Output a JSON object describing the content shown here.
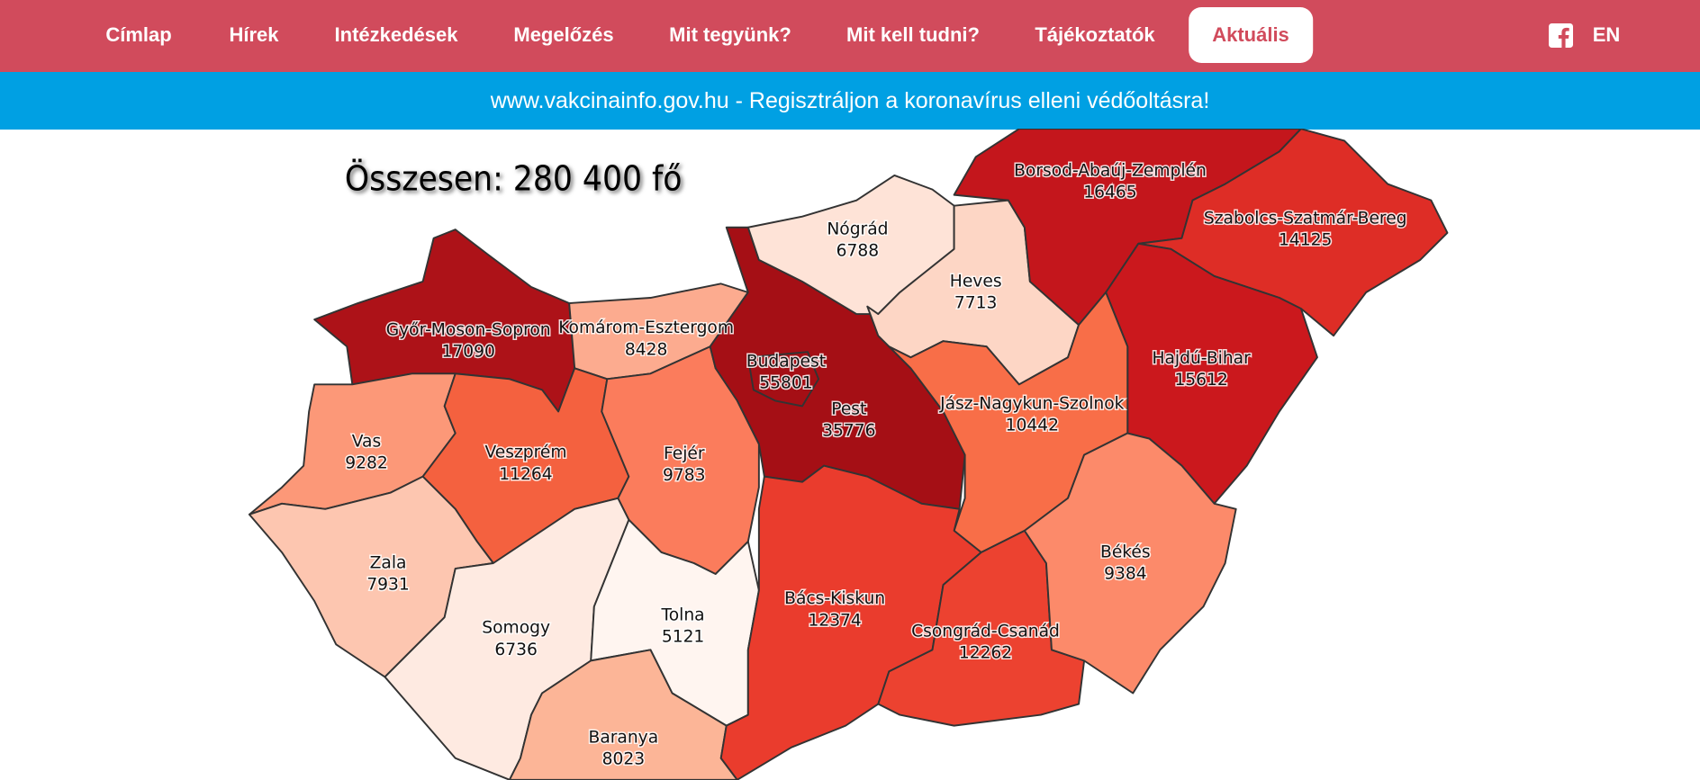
{
  "nav": {
    "items": [
      "Címlap",
      "Hírek",
      "Intézkedések",
      "Megelőzés",
      "Mit tegyünk?",
      "Mit kell tudni?",
      "Tájékoztatók",
      "Aktuális"
    ],
    "language": "EN"
  },
  "banner": {
    "text": "www.vakcinainfo.gov.hu - Regisztráljon a koronavírus elleni védőoltásra!"
  },
  "map": {
    "title": "Összesen: 280 400 fő",
    "regions": [
      {
        "name": "Győr-Moson-Sopron",
        "value": 17090,
        "color": "#ad1218"
      },
      {
        "name": "Komárom-Esztergom",
        "value": 8428,
        "color": "#fcab8f"
      },
      {
        "name": "Vas",
        "value": 9282,
        "color": "#fc9878"
      },
      {
        "name": "Veszprém",
        "value": 11264,
        "color": "#f4613f"
      },
      {
        "name": "Fejér",
        "value": 9783,
        "color": "#fb7c5c"
      },
      {
        "name": "Zala",
        "value": 7931,
        "color": "#fdc6b0"
      },
      {
        "name": "Somogy",
        "value": 6736,
        "color": "#feeae1"
      },
      {
        "name": "Tolna",
        "value": 5121,
        "color": "#fff5f0"
      },
      {
        "name": "Baranya",
        "value": 8023,
        "color": "#fcb597"
      },
      {
        "name": "Pest",
        "value": 35776,
        "color": "#a50f15"
      },
      {
        "name": "Budapest",
        "value": 55801,
        "color": "#a50f15"
      },
      {
        "name": "Nógrád",
        "value": 6788,
        "color": "#fee3d7"
      },
      {
        "name": "Heves",
        "value": 7713,
        "color": "#fdd6c5"
      },
      {
        "name": "Borsod-Abaúj-Zemplén",
        "value": 16465,
        "color": "#c4161c"
      },
      {
        "name": "Szabolcs-Szatmár-Bereg",
        "value": 14125,
        "color": "#de2d26"
      },
      {
        "name": "Hajdú-Bihar",
        "value": 15612,
        "color": "#cb181d"
      },
      {
        "name": "Jász-Nagykun-Szolnok",
        "value": 10442,
        "color": "#f86e48"
      },
      {
        "name": "Bács-Kiskun",
        "value": 12374,
        "color": "#ea3c2d"
      },
      {
        "name": "Csongrád-Csanád",
        "value": 12262,
        "color": "#ec4230"
      },
      {
        "name": "Békés",
        "value": 9384,
        "color": "#fc8a6a"
      }
    ]
  }
}
